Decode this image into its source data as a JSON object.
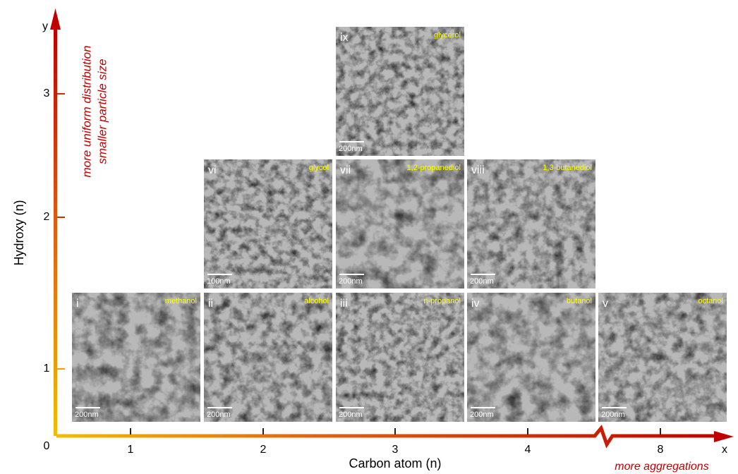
{
  "y_axis": {
    "name": "y",
    "label": "Hydroxy (n)",
    "ticks": [
      "0",
      "1",
      "2",
      "3"
    ],
    "notes": [
      "more uniform distribution",
      "smaller particle size"
    ]
  },
  "x_axis": {
    "name": "x",
    "label": "Carbon atom (n)",
    "ticks": [
      "1",
      "2",
      "3",
      "4",
      "8"
    ],
    "note": "more aggregations"
  },
  "panels": [
    {
      "numeral": "i",
      "label": "methanol",
      "scale": "200nm"
    },
    {
      "numeral": "ii",
      "label": "alcohol",
      "scale": "200nm"
    },
    {
      "numeral": "iii",
      "label": "n-propanol",
      "scale": "200nm"
    },
    {
      "numeral": "iv",
      "label": "butanol",
      "scale": "200nm"
    },
    {
      "numeral": "v",
      "label": "octanol",
      "scale": "200nm"
    },
    {
      "numeral": "vi",
      "label": "glycol",
      "scale": "100nm"
    },
    {
      "numeral": "vii",
      "label": "1,2-propanediol",
      "scale": "200nm"
    },
    {
      "numeral": "viii",
      "label": "1,3-butanediol",
      "scale": "200nm"
    },
    {
      "numeral": "ix",
      "label": "glycerol",
      "scale": "200nm"
    }
  ]
}
